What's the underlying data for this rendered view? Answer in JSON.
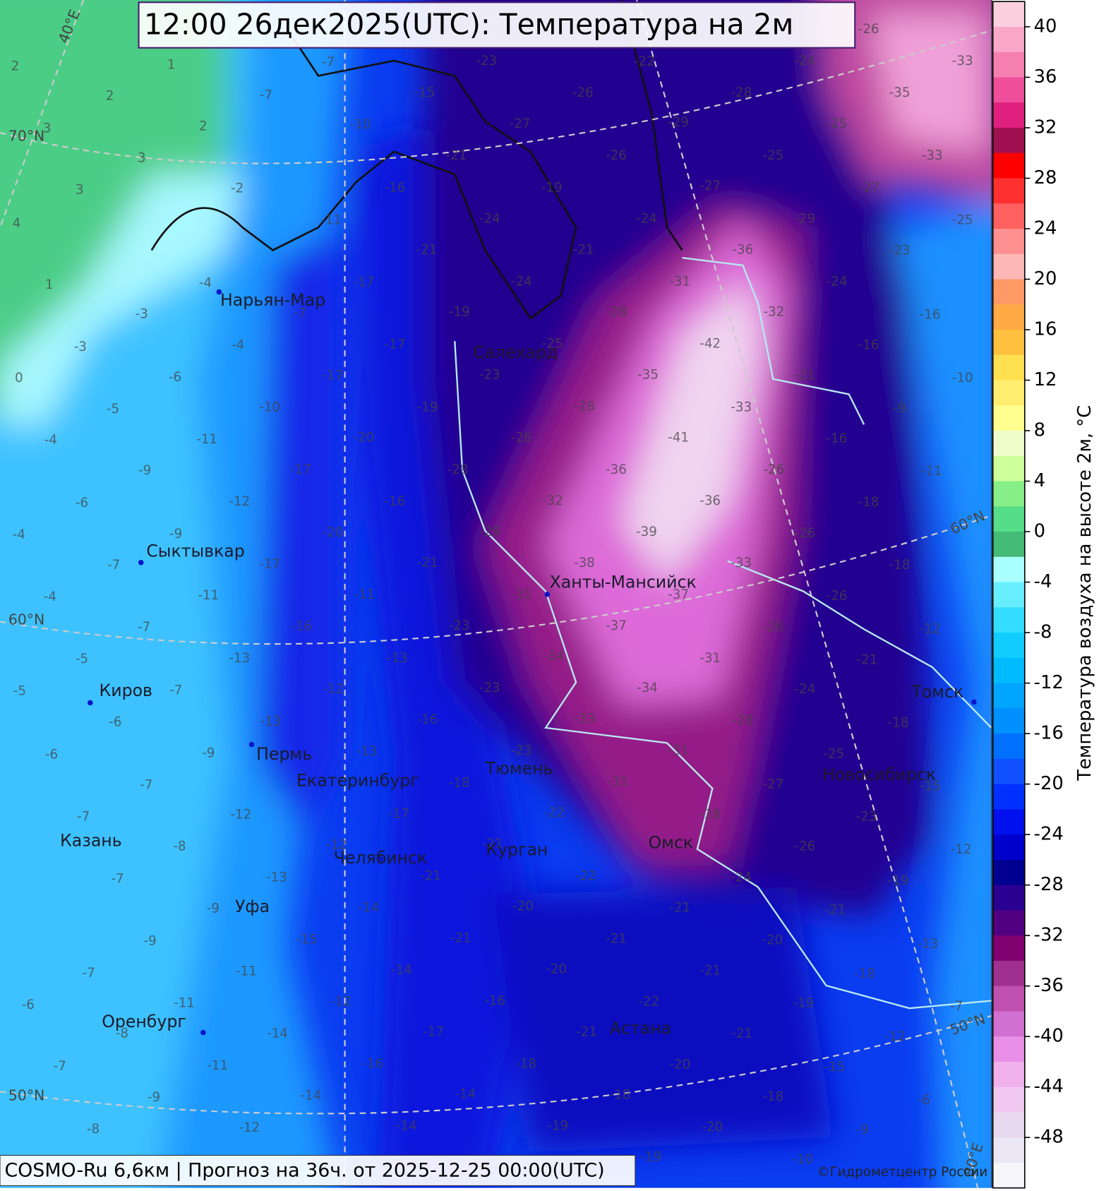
{
  "header": {
    "title": "12:00 26дек2025(UTC): Температура на 2м"
  },
  "footer": {
    "model_info": "COSMO-Ru 6,6км | Прогноз на  36ч. от 2025-12-25 00:00(UTC)",
    "copyright": "©Гидрометцентр России"
  },
  "colorbar": {
    "label": "Температура воздуха на высоте 2м, °C",
    "range": [
      -52,
      42
    ],
    "ticks": [
      40,
      36,
      32,
      28,
      24,
      20,
      16,
      12,
      8,
      4,
      0,
      -4,
      -8,
      -12,
      -16,
      -20,
      -24,
      -28,
      -32,
      -36,
      -40,
      -44,
      -48
    ],
    "colors": [
      "#fdd0e0",
      "#f9a8c8",
      "#f580b0",
      "#ef4f9a",
      "#e0207f",
      "#a01050",
      "#ff0000",
      "#ff3030",
      "#ff6060",
      "#ff9090",
      "#ffb8b8",
      "#ff9966",
      "#ffaa44",
      "#ffc040",
      "#ffe050",
      "#ffee70",
      "#ffff90",
      "#eeffcc",
      "#ccff99",
      "#88ee88",
      "#55dd88",
      "#44bb77",
      "#aaffff",
      "#66eeff",
      "#33ddff",
      "#11ccff",
      "#00bbff",
      "#00a5ff",
      "#0090ff",
      "#0070ff",
      "#1050ff",
      "#0030ff",
      "#0010ee",
      "#0000cc",
      "#000090",
      "#2a0090",
      "#500080",
      "#800070",
      "#a03090",
      "#c050b0",
      "#d070d0",
      "#e890e8",
      "#f0b0ec",
      "#f0c8f0",
      "#e8d8f0",
      "#eae6f4",
      "#f6f6fb"
    ]
  },
  "cities": [
    "Нарьян-Мар",
    "Салехард",
    "Сыктывкар",
    "Ханты-Мансийск",
    "Киров",
    "Пермь",
    "Екатеринбург",
    "Тюмень",
    "Новосибирск",
    "Томск",
    "Казань",
    "Челябинск",
    "Курган",
    "Омск",
    "Уфа",
    "Оренбург",
    "Астана"
  ],
  "graticule_labels": [
    "40°E",
    "70°N",
    "60°N",
    "50°N",
    "60°N",
    "50°N",
    "80°E"
  ],
  "temperature_labels": [
    "1",
    "2",
    "-7",
    "-23",
    "-22",
    "-24",
    "-33",
    "-26",
    "2",
    "-7",
    "-15",
    "-26",
    "-28",
    "-35",
    "3",
    "2",
    "-10",
    "-27",
    "-29",
    "-25",
    "3",
    "-21",
    "-26",
    "-25",
    "-33",
    "3",
    "-2",
    "-16",
    "-19",
    "-27",
    "-27",
    "4",
    "-11",
    "-24",
    "-24",
    "-29",
    "-25",
    "-21",
    "-21",
    "-36",
    "-23",
    "1",
    "-4",
    "-17",
    "-24",
    "-31",
    "-24",
    "-3",
    "-7",
    "-19",
    "-28",
    "-32",
    "-16",
    "-3",
    "-4",
    "-17",
    "-25",
    "-42",
    "-16",
    "0",
    "-6",
    "-17",
    "-23",
    "-35",
    "-21",
    "-10",
    "-5",
    "-10",
    "-19",
    "-28",
    "-33",
    "-9",
    "-4",
    "-11",
    "-20",
    "-26",
    "-41",
    "-16",
    "-9",
    "-17",
    "-28",
    "-36",
    "-26",
    "-11",
    "-6",
    "-12",
    "-16",
    "-32",
    "-36",
    "-18",
    "-4",
    "-9",
    "-20",
    "-29",
    "-39",
    "-26",
    "-7",
    "-17",
    "-21",
    "-38",
    "-33",
    "-18",
    "-4",
    "-11",
    "-11",
    "-31",
    "-37",
    "-26",
    "-7",
    "-16",
    "-23",
    "-37",
    "-26",
    "-12",
    "-5",
    "-13",
    "-13",
    "-34",
    "-31",
    "-21",
    "-5",
    "-7",
    "-12",
    "-23",
    "-34",
    "-24",
    "-6",
    "-13",
    "-16",
    "-33",
    "-28",
    "-18",
    "-6",
    "-9",
    "-13",
    "-23",
    "-31",
    "-25",
    "-7",
    "-18",
    "-31",
    "-27",
    "-15",
    "-7",
    "-12",
    "-17",
    "-22",
    "-28",
    "-23",
    "-8",
    "-12",
    "-21",
    "-26",
    "-12",
    "-7",
    "-13",
    "-21",
    "-22",
    "-24",
    "-19",
    "-9",
    "-14",
    "-20",
    "-21",
    "-21",
    "-9",
    "-15",
    "-21",
    "-21",
    "-20",
    "-13",
    "-7",
    "-11",
    "-14",
    "-20",
    "-21",
    "-18",
    "-6",
    "-11",
    "-12",
    "-16",
    "-22",
    "-19",
    "-7",
    "-8",
    "-14",
    "-17",
    "-21",
    "-21",
    "-12",
    "-7",
    "-11",
    "-16",
    "-18",
    "-20",
    "-15",
    "-9",
    "-14",
    "-14",
    "-18",
    "-18",
    "-6",
    "-8",
    "-12",
    "-14",
    "-19",
    "-20",
    "-9",
    "-19",
    "-10"
  ]
}
